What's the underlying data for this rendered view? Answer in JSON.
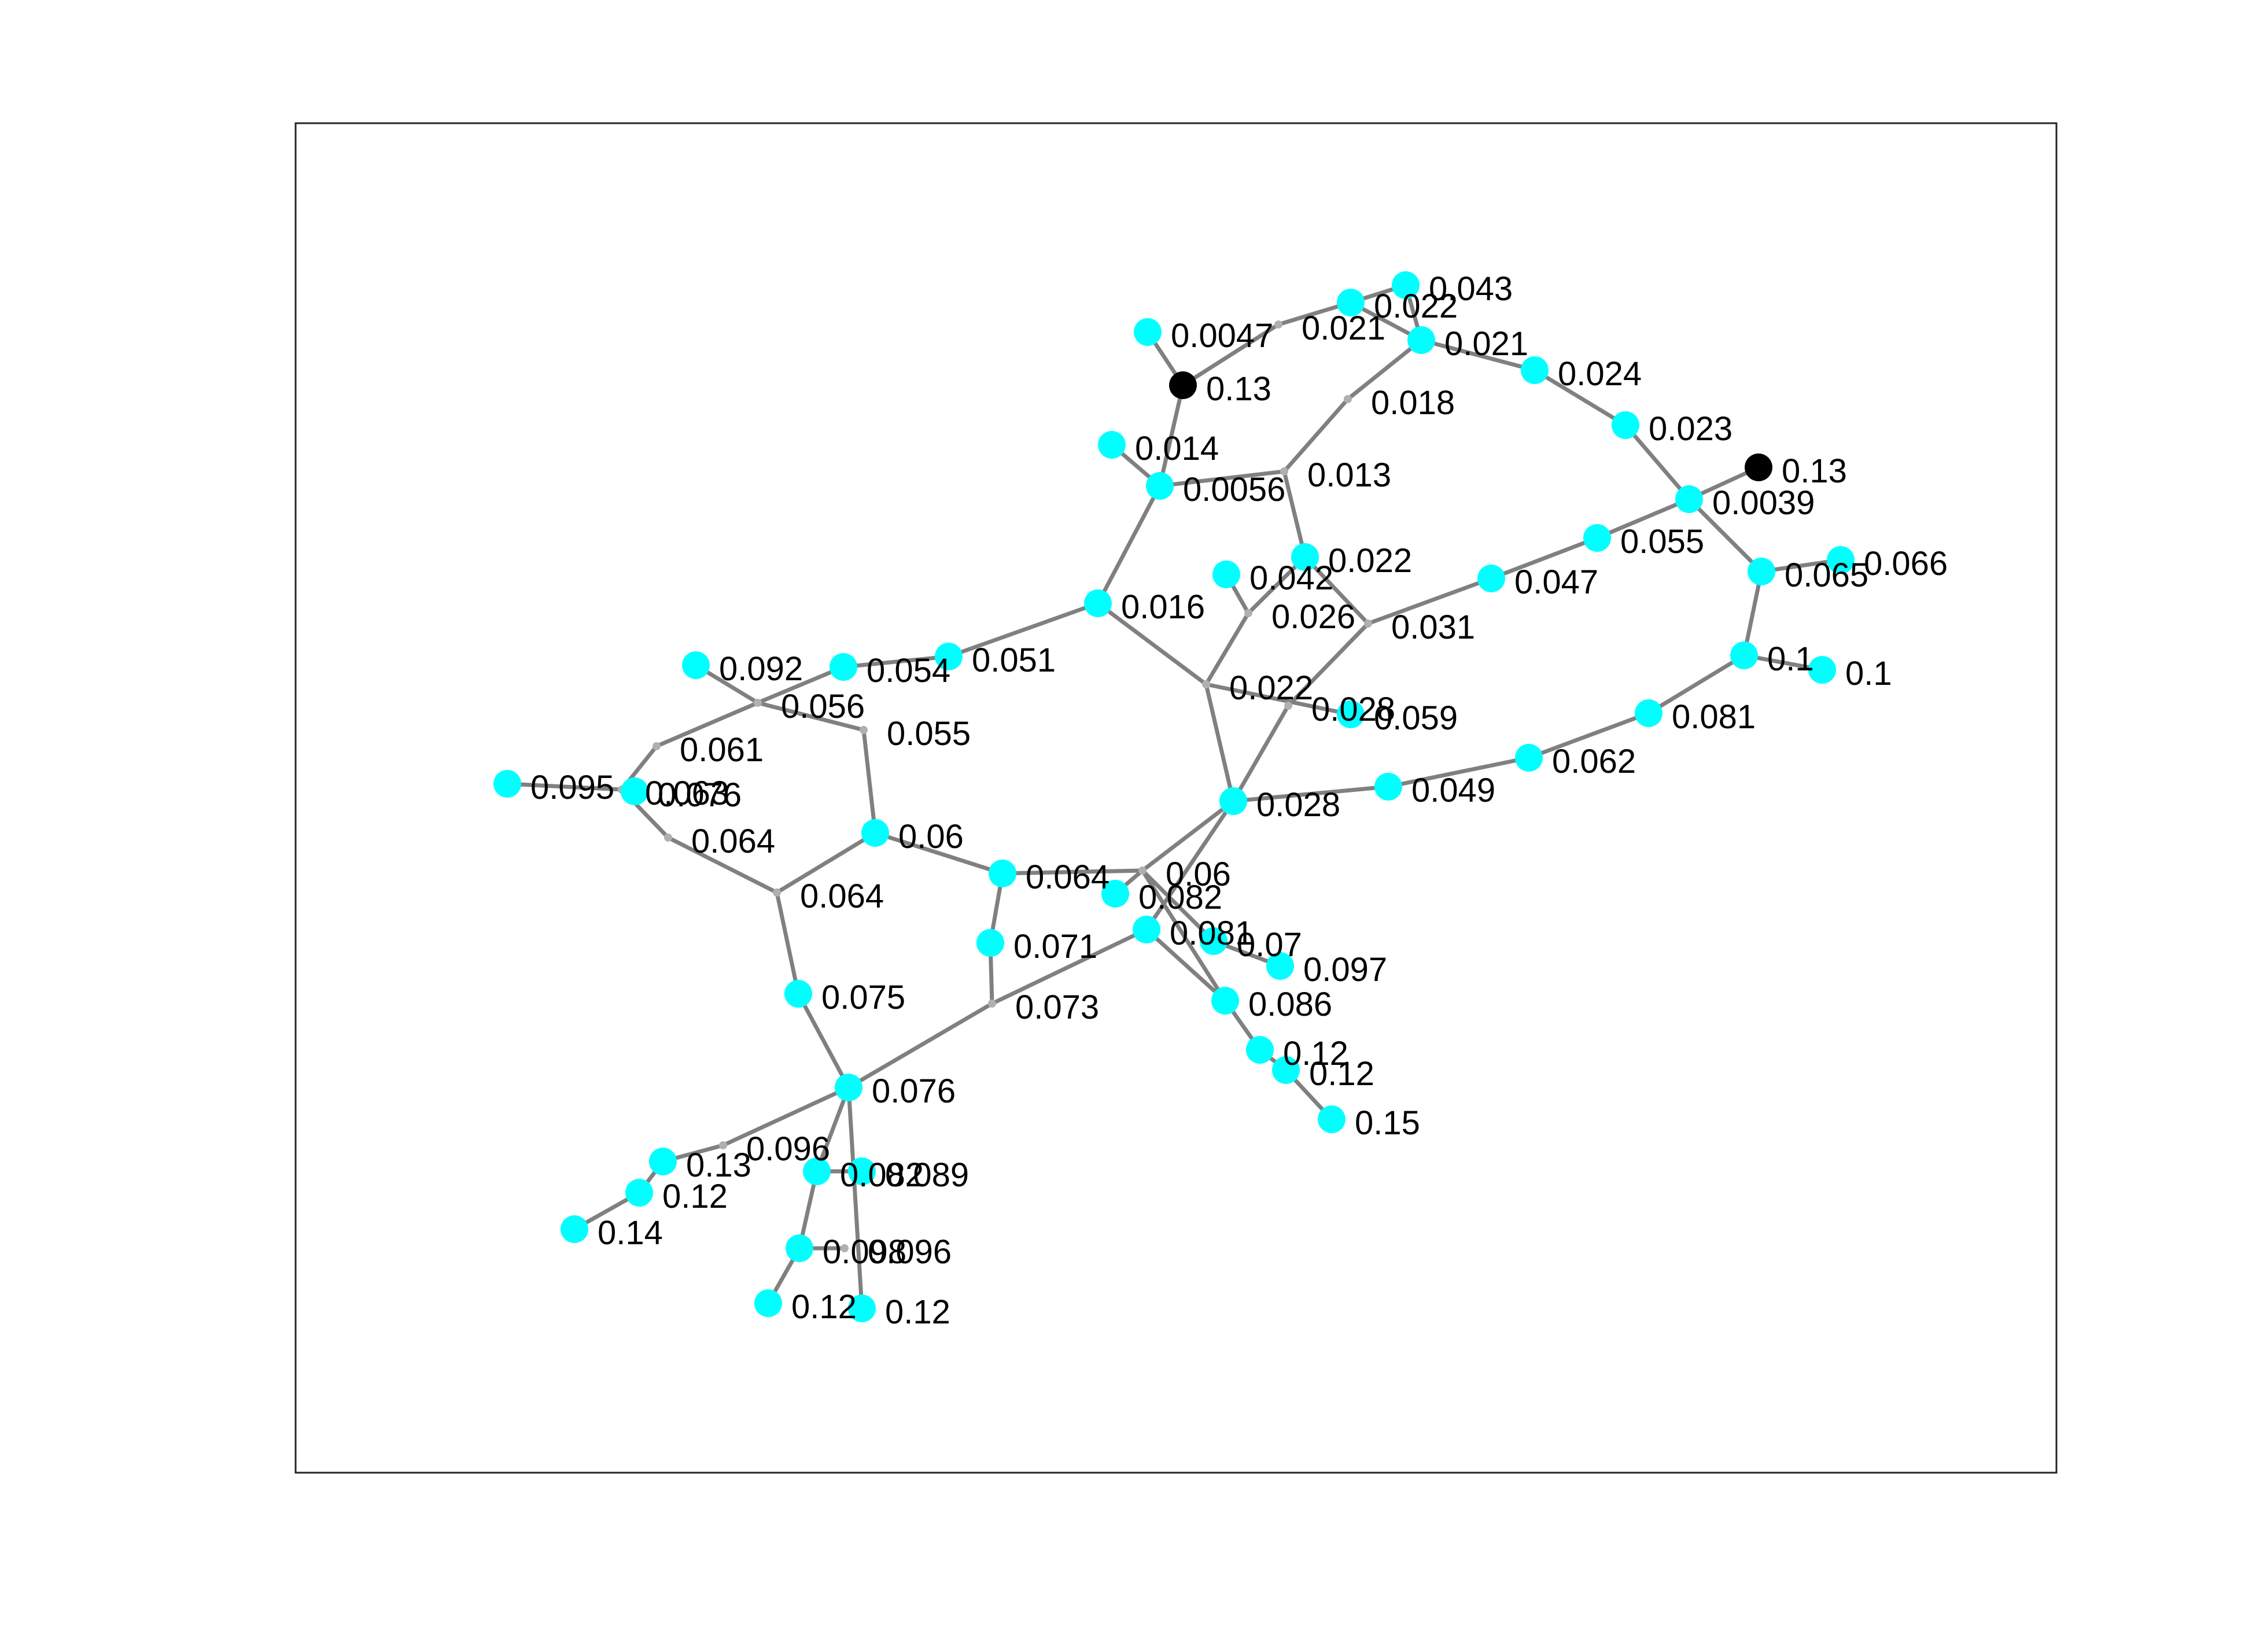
{
  "colors": {
    "node_default": "#00ffff",
    "node_highlight": "#000000",
    "junction": "#b0b0b0",
    "edge": "#808080"
  },
  "nodes": [
    {
      "id": "n1",
      "label": "0.0047",
      "kind": "node"
    },
    {
      "id": "n2",
      "label": "0.13",
      "kind": "highlight"
    },
    {
      "id": "n3",
      "label": "0.021",
      "kind": "junction"
    },
    {
      "id": "n4",
      "label": "0.022",
      "kind": "node"
    },
    {
      "id": "n5",
      "label": "0.043",
      "kind": "node"
    },
    {
      "id": "n6",
      "label": "0.021",
      "kind": "node"
    },
    {
      "id": "n7",
      "label": "0.024",
      "kind": "node"
    },
    {
      "id": "n8",
      "label": "0.023",
      "kind": "node"
    },
    {
      "id": "n9",
      "label": "0.13",
      "kind": "highlight"
    },
    {
      "id": "n10",
      "label": "0.0039",
      "kind": "node"
    },
    {
      "id": "n11",
      "label": "0.018",
      "kind": "junction"
    },
    {
      "id": "n12",
      "label": "0.014",
      "kind": "node"
    },
    {
      "id": "n13",
      "label": "0.0056",
      "kind": "node"
    },
    {
      "id": "n14",
      "label": "0.013",
      "kind": "junction"
    },
    {
      "id": "n15",
      "label": "0.022",
      "kind": "node"
    },
    {
      "id": "n16",
      "label": "0.055",
      "kind": "node"
    },
    {
      "id": "n17",
      "label": "0.065",
      "kind": "node"
    },
    {
      "id": "n18",
      "label": "0.066",
      "kind": "node"
    },
    {
      "id": "n19",
      "label": "0.042",
      "kind": "node"
    },
    {
      "id": "n20",
      "label": "0.026",
      "kind": "junction"
    },
    {
      "id": "n21",
      "label": "0.047",
      "kind": "node"
    },
    {
      "id": "n22",
      "label": "0.031",
      "kind": "junction"
    },
    {
      "id": "n23",
      "label": "0.016",
      "kind": "node"
    },
    {
      "id": "n24",
      "label": "0.1",
      "kind": "node"
    },
    {
      "id": "n25",
      "label": "0.1",
      "kind": "node"
    },
    {
      "id": "n26",
      "label": "0.022",
      "kind": "junction"
    },
    {
      "id": "n27",
      "label": "0.028",
      "kind": "junction"
    },
    {
      "id": "n28",
      "label": "0.059",
      "kind": "node"
    },
    {
      "id": "n29",
      "label": "0.081",
      "kind": "node"
    },
    {
      "id": "n30",
      "label": "0.062",
      "kind": "node"
    },
    {
      "id": "n31",
      "label": "0.049",
      "kind": "node"
    },
    {
      "id": "n32",
      "label": "0.028",
      "kind": "node"
    },
    {
      "id": "n33",
      "label": "0.092",
      "kind": "node"
    },
    {
      "id": "n34",
      "label": "0.054",
      "kind": "node"
    },
    {
      "id": "n35",
      "label": "0.051",
      "kind": "node"
    },
    {
      "id": "n36",
      "label": "0.056",
      "kind": "junction"
    },
    {
      "id": "n37",
      "label": "0.055",
      "kind": "junction"
    },
    {
      "id": "n38",
      "label": "0.061",
      "kind": "junction"
    },
    {
      "id": "n39",
      "label": "0.095",
      "kind": "node"
    },
    {
      "id": "n40",
      "label": "0.063",
      "kind": "junction"
    },
    {
      "id": "n41",
      "label": "0.076",
      "kind": "node"
    },
    {
      "id": "n42",
      "label": "0.064",
      "kind": "junction"
    },
    {
      "id": "n43",
      "label": "0.06",
      "kind": "node"
    },
    {
      "id": "n44",
      "label": "0.064",
      "kind": "junction"
    },
    {
      "id": "n45",
      "label": "0.064",
      "kind": "node"
    },
    {
      "id": "n46",
      "label": "0.06",
      "kind": "junction"
    },
    {
      "id": "n47",
      "label": "0.082",
      "kind": "node"
    },
    {
      "id": "n48",
      "label": "0.071",
      "kind": "node"
    },
    {
      "id": "n49",
      "label": "0.081",
      "kind": "node"
    },
    {
      "id": "n50",
      "label": "0.07",
      "kind": "node"
    },
    {
      "id": "n51",
      "label": "0.097",
      "kind": "node"
    },
    {
      "id": "n52",
      "label": "0.073",
      "kind": "junction"
    },
    {
      "id": "n53",
      "label": "0.086",
      "kind": "node"
    },
    {
      "id": "n54",
      "label": "0.075",
      "kind": "node"
    },
    {
      "id": "n55",
      "label": "0.12",
      "kind": "node"
    },
    {
      "id": "n56",
      "label": "0.12",
      "kind": "node"
    },
    {
      "id": "n57",
      "label": "0.15",
      "kind": "node"
    },
    {
      "id": "n58",
      "label": "0.076",
      "kind": "node"
    },
    {
      "id": "n59",
      "label": "0.096",
      "kind": "junction"
    },
    {
      "id": "n60",
      "label": "0.13",
      "kind": "node"
    },
    {
      "id": "n61",
      "label": "0.12",
      "kind": "node"
    },
    {
      "id": "n62",
      "label": "0.14",
      "kind": "node"
    },
    {
      "id": "n63",
      "label": "0.082",
      "kind": "node"
    },
    {
      "id": "n64",
      "label": "0.089",
      "kind": "node"
    },
    {
      "id": "n65",
      "label": "0.098",
      "kind": "node"
    },
    {
      "id": "n66",
      "label": "0.096",
      "kind": "junction"
    },
    {
      "id": "n67",
      "label": "0.12",
      "kind": "node"
    },
    {
      "id": "n68",
      "label": "0.12",
      "kind": "node"
    }
  ],
  "edges": [
    [
      "n1",
      "n2"
    ],
    [
      "n2",
      "n13"
    ],
    [
      "n12",
      "n13"
    ],
    [
      "n13",
      "n23"
    ],
    [
      "n13",
      "n14"
    ],
    [
      "n2",
      "n3"
    ],
    [
      "n3",
      "n4"
    ],
    [
      "n4",
      "n5"
    ],
    [
      "n4",
      "n6"
    ],
    [
      "n5",
      "n6"
    ],
    [
      "n6",
      "n7"
    ],
    [
      "n7",
      "n8"
    ],
    [
      "n8",
      "n10"
    ],
    [
      "n9",
      "n10"
    ],
    [
      "n10",
      "n17"
    ],
    [
      "n10",
      "n16"
    ],
    [
      "n17",
      "n18"
    ],
    [
      "n17",
      "n24"
    ],
    [
      "n24",
      "n25"
    ],
    [
      "n24",
      "n29"
    ],
    [
      "n6",
      "n11"
    ],
    [
      "n11",
      "n14"
    ],
    [
      "n14",
      "n15"
    ],
    [
      "n15",
      "n22"
    ],
    [
      "n16",
      "n21"
    ],
    [
      "n21",
      "n22"
    ],
    [
      "n22",
      "n27"
    ],
    [
      "n19",
      "n20"
    ],
    [
      "n20",
      "n26"
    ],
    [
      "n15",
      "n20"
    ],
    [
      "n23",
      "n26"
    ],
    [
      "n26",
      "n28"
    ],
    [
      "n26",
      "n32"
    ],
    [
      "n27",
      "n32"
    ],
    [
      "n32",
      "n31"
    ],
    [
      "n31",
      "n30"
    ],
    [
      "n30",
      "n29"
    ],
    [
      "n23",
      "n35"
    ],
    [
      "n35",
      "n34"
    ],
    [
      "n34",
      "n36"
    ],
    [
      "n33",
      "n36"
    ],
    [
      "n36",
      "n38"
    ],
    [
      "n36",
      "n37"
    ],
    [
      "n38",
      "n40"
    ],
    [
      "n39",
      "n40"
    ],
    [
      "n40",
      "n41"
    ],
    [
      "n40",
      "n42"
    ],
    [
      "n42",
      "n44"
    ],
    [
      "n37",
      "n43"
    ],
    [
      "n43",
      "n44"
    ],
    [
      "n43",
      "n45"
    ],
    [
      "n45",
      "n46"
    ],
    [
      "n46",
      "n32"
    ],
    [
      "n46",
      "n47"
    ],
    [
      "n46",
      "n50"
    ],
    [
      "n50",
      "n51"
    ],
    [
      "n46",
      "n53"
    ],
    [
      "n45",
      "n48"
    ],
    [
      "n48",
      "n52"
    ],
    [
      "n32",
      "n49"
    ],
    [
      "n49",
      "n53"
    ],
    [
      "n53",
      "n55"
    ],
    [
      "n55",
      "n56"
    ],
    [
      "n56",
      "n57"
    ],
    [
      "n49",
      "n52"
    ],
    [
      "n52",
      "n58"
    ],
    [
      "n44",
      "n54"
    ],
    [
      "n54",
      "n58"
    ],
    [
      "n58",
      "n59"
    ],
    [
      "n59",
      "n60"
    ],
    [
      "n60",
      "n61"
    ],
    [
      "n61",
      "n62"
    ],
    [
      "n58",
      "n63"
    ],
    [
      "n63",
      "n64"
    ],
    [
      "n63",
      "n65"
    ],
    [
      "n65",
      "n66"
    ],
    [
      "n65",
      "n67"
    ],
    [
      "n58",
      "n68"
    ]
  ]
}
